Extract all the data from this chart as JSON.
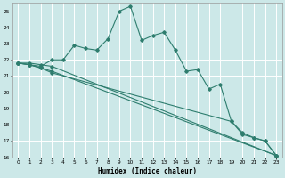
{
  "xlabel": "Humidex (Indice chaleur)",
  "bg_color": "#cce8e8",
  "grid_color": "#ffffff",
  "line_color": "#2e7d6e",
  "xlim": [
    -0.5,
    23.5
  ],
  "ylim": [
    16,
    25.5
  ],
  "yticks": [
    16,
    17,
    18,
    19,
    20,
    21,
    22,
    23,
    24,
    25
  ],
  "xticks": [
    0,
    1,
    2,
    3,
    4,
    5,
    6,
    7,
    8,
    9,
    10,
    11,
    12,
    13,
    14,
    15,
    16,
    17,
    18,
    19,
    20,
    21,
    22,
    23
  ],
  "series1_x": [
    0,
    1,
    2,
    3,
    4,
    5,
    6,
    7,
    8,
    9,
    10,
    11,
    12,
    13,
    14,
    15,
    16,
    17,
    18,
    19,
    20,
    21,
    22,
    23
  ],
  "series1_y": [
    21.8,
    21.7,
    21.6,
    22.0,
    22.0,
    22.9,
    22.7,
    22.6,
    23.3,
    25.0,
    25.3,
    23.2,
    23.5,
    23.7,
    22.6,
    21.3,
    21.4,
    20.2,
    20.5,
    18.2,
    17.4,
    17.2,
    17.0,
    16.1
  ],
  "series2_x": [
    0,
    1,
    2,
    3,
    23
  ],
  "series2_y": [
    21.8,
    21.8,
    21.7,
    21.6,
    16.1
  ],
  "series3_x": [
    0,
    1,
    2,
    3,
    23
  ],
  "series3_y": [
    21.8,
    21.7,
    21.5,
    21.3,
    16.1
  ],
  "series4_x": [
    0,
    1,
    2,
    3,
    19,
    20,
    21,
    22,
    23
  ],
  "series4_y": [
    21.8,
    21.7,
    21.5,
    21.2,
    18.2,
    17.5,
    17.2,
    17.0,
    16.1
  ]
}
